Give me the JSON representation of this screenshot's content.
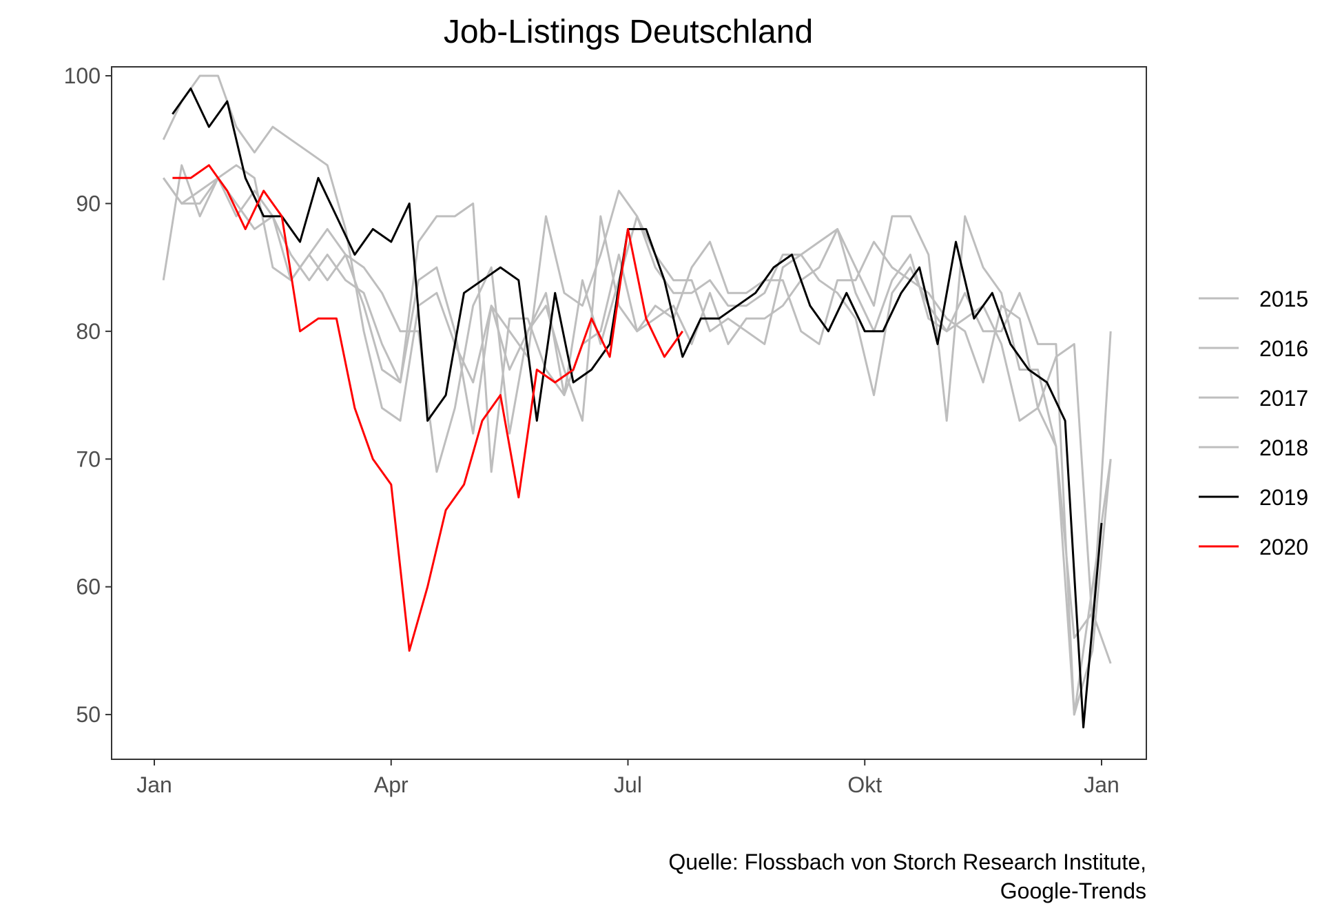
{
  "chart_data": {
    "type": "line",
    "title": "Job-Listings Deutschland",
    "caption": [
      "Quelle: Flossbach von Storch Research Institute,",
      "Google-Trends"
    ],
    "x_axis": {
      "unit": "calendar week",
      "range": [
        1,
        53
      ],
      "tick_labels": [
        {
          "label": "Jan",
          "week": 1
        },
        {
          "label": "Apr",
          "week": 14
        },
        {
          "label": "Jul",
          "week": 27
        },
        {
          "label": "Okt",
          "week": 40
        },
        {
          "label": "Jan",
          "week": 53
        }
      ]
    },
    "y_axis": {
      "ylim": [
        46.5,
        100.7
      ],
      "ticks": [
        50,
        60,
        70,
        80,
        90,
        100
      ]
    },
    "grid": false,
    "legend_position": "right",
    "colors": {
      "2015": "#bebebe",
      "2016": "#bebebe",
      "2017": "#bebebe",
      "2018": "#bebebe",
      "2019": "#000000",
      "2020": "#ff0000"
    },
    "series": [
      {
        "name": "2015",
        "x_start": 1.5,
        "values": [
          84,
          93,
          89,
          92,
          93,
          92,
          85,
          84,
          86,
          84,
          86,
          85,
          83,
          80,
          80,
          69,
          74,
          82,
          85,
          72,
          80,
          82,
          77,
          73,
          89,
          82,
          80,
          82,
          81,
          85,
          87,
          83,
          83,
          84,
          84,
          80,
          79,
          84,
          84,
          87,
          85,
          84,
          83,
          81,
          80,
          76,
          82,
          81,
          74,
          78,
          79,
          57,
          80
        ]
      },
      {
        "name": "2016",
        "x_start": 1.5,
        "values": [
          95,
          98,
          100,
          100,
          96,
          94,
          96,
          95,
          94,
          93,
          88,
          80,
          74,
          73,
          82,
          83,
          79,
          76,
          82,
          80,
          78,
          89,
          83,
          82,
          86,
          91,
          89,
          85,
          83,
          83,
          84,
          82,
          82,
          83,
          86,
          86,
          84,
          83,
          81,
          75,
          83,
          85,
          82,
          80,
          83,
          80,
          80,
          83,
          79,
          79,
          50,
          60,
          70
        ]
      },
      {
        "name": "2017",
        "x_start": 1.5,
        "values": [
          92,
          90,
          90,
          92,
          89,
          91,
          89,
          86,
          84,
          86,
          84,
          83,
          79,
          76,
          87,
          89,
          89,
          90,
          69,
          81,
          81,
          77,
          75,
          84,
          79,
          84,
          89,
          86,
          84,
          84,
          80,
          81,
          80,
          79,
          85,
          86,
          87,
          88,
          83,
          80,
          84,
          86,
          81,
          80,
          81,
          82,
          79,
          73,
          74,
          71,
          56,
          58,
          54
        ]
      },
      {
        "name": "2018",
        "x_start": 1.5,
        "values": [
          92,
          90,
          91,
          92,
          90,
          88,
          89,
          84,
          86,
          88,
          86,
          82,
          77,
          76,
          84,
          85,
          80,
          72,
          82,
          77,
          80,
          83,
          75,
          79,
          80,
          86,
          80,
          81,
          82,
          79,
          83,
          79,
          81,
          81,
          82,
          84,
          85,
          88,
          85,
          82,
          89,
          89,
          86,
          73,
          89,
          85,
          83,
          77,
          77,
          71,
          50,
          55,
          70
        ]
      },
      {
        "name": "2019",
        "x_start": 2,
        "values": [
          97,
          99,
          96,
          98,
          92,
          89,
          89,
          87,
          92,
          89,
          86,
          88,
          87,
          90,
          73,
          75,
          83,
          84,
          85,
          84,
          73,
          83,
          76,
          77,
          79,
          88,
          88,
          84,
          78,
          81,
          81,
          82,
          83,
          85,
          86,
          82,
          80,
          83,
          80,
          80,
          83,
          85,
          79,
          87,
          81,
          83,
          79,
          77,
          76,
          73,
          49,
          65
        ]
      },
      {
        "name": "2020",
        "x_start": 2,
        "values": [
          92,
          92,
          93,
          91,
          88,
          91,
          89,
          80,
          81,
          81,
          74,
          70,
          68,
          55,
          60,
          66,
          68,
          73,
          75,
          67,
          77,
          76,
          77,
          81,
          78,
          88,
          81,
          78,
          80
        ]
      }
    ]
  }
}
